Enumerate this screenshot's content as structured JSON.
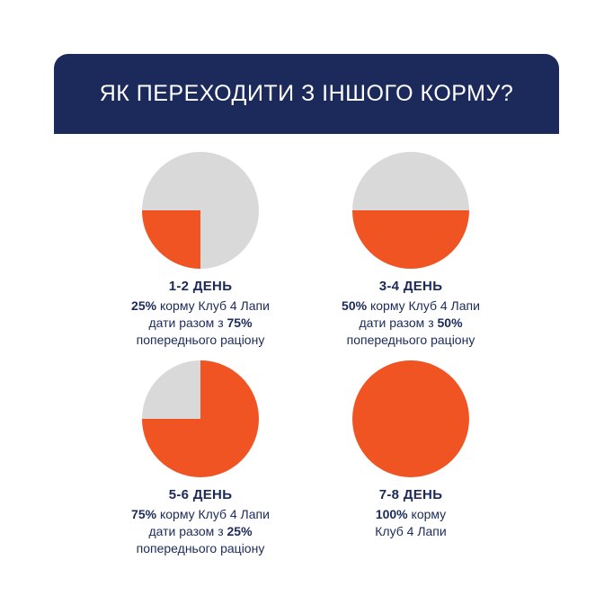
{
  "title": "ЯК ПЕРЕХОДИТИ З ІНШОГО КОРМУ?",
  "colors": {
    "banner": "#1b2a5a",
    "new_food": "#f05423",
    "old_food": "#d9d9da",
    "text": "#1b2a5a"
  },
  "chart_data": [
    {
      "type": "pie",
      "day": "1-2 ДЕНЬ",
      "values": [
        25,
        75
      ],
      "line1": {
        "pct": "25%",
        "text": " корму Клуб 4 Лапи"
      },
      "line2": {
        "text": "дати разом з ",
        "pct": "75%"
      },
      "line3": "попереднього раціону"
    },
    {
      "type": "pie",
      "day": "3-4 ДЕНЬ",
      "values": [
        50,
        50
      ],
      "line1": {
        "pct": "50%",
        "text": " корму Клуб 4 Лапи"
      },
      "line2": {
        "text": "дати разом з ",
        "pct": "50%"
      },
      "line3": "попереднього раціону"
    },
    {
      "type": "pie",
      "day": "5-6 ДЕНЬ",
      "values": [
        75,
        25
      ],
      "line1": {
        "pct": "75%",
        "text": " корму Клуб 4 Лапи"
      },
      "line2": {
        "text": "дати разом з ",
        "pct": "25%"
      },
      "line3": "попереднього раціону"
    },
    {
      "type": "pie",
      "day": "7-8 ДЕНЬ",
      "values": [
        100,
        0
      ],
      "line1": {
        "pct": "100%",
        "text": " корму"
      },
      "line2": {
        "text": "Клуб 4 Лапи",
        "pct": ""
      },
      "line3": ""
    }
  ]
}
